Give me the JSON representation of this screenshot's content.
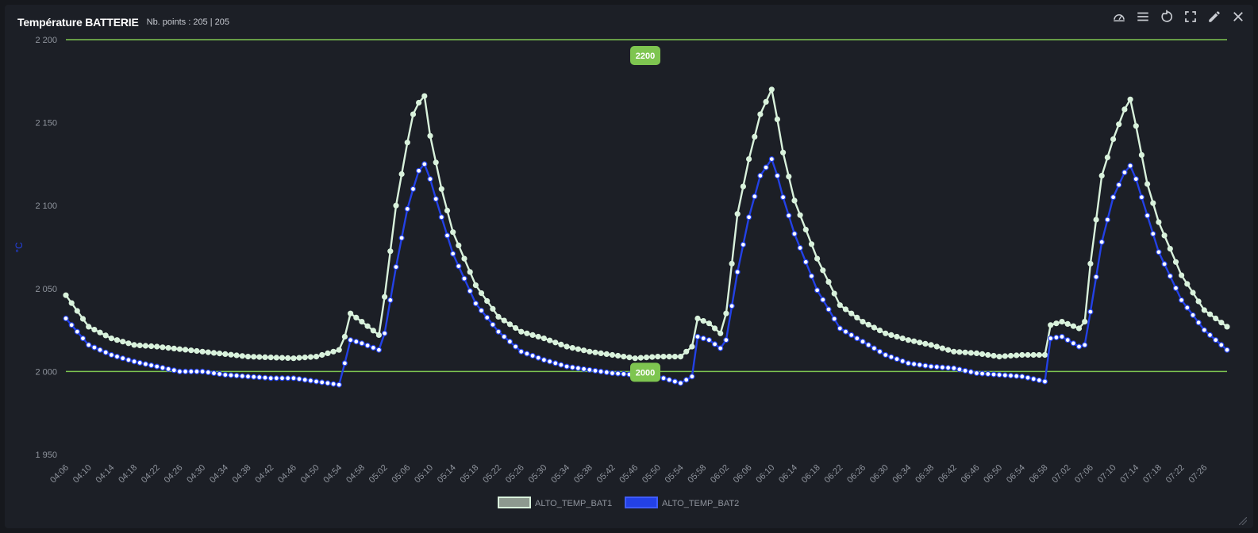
{
  "panel": {
    "title": "Température BATTERIE",
    "points_label": "Nb. points : 205 | 205"
  },
  "toolbar": [
    "gauge-icon",
    "menu-icon",
    "refresh-icon",
    "fullscreen-icon",
    "edit-icon",
    "close-icon"
  ],
  "colors": {
    "background": "#1c1f26",
    "threshold": "#7ec550",
    "bat1": "#d9f2dc",
    "bat2": "#2341e6",
    "text": "#8f949d",
    "ylabel": "#2341e6"
  },
  "chart_data": {
    "type": "line",
    "ylabel": "°C",
    "ylim": [
      1950,
      2200
    ],
    "yticks": [
      "2 200",
      "2 150",
      "2 100",
      "2 050",
      "2 000",
      "1 950"
    ],
    "ytick_values": [
      2200,
      2150,
      2100,
      2050,
      2000,
      1950
    ],
    "x_start": "04:06",
    "x_end": "07:30",
    "xticks": [
      "04:06",
      "04:10",
      "04:14",
      "04:18",
      "04:22",
      "04:26",
      "04:30",
      "04:34",
      "04:38",
      "04:42",
      "04:46",
      "04:50",
      "04:54",
      "04:58",
      "05:02",
      "05:06",
      "05:10",
      "05:14",
      "05:18",
      "05:22",
      "05:26",
      "05:30",
      "05:34",
      "05:38",
      "05:42",
      "05:46",
      "05:50",
      "05:54",
      "05:58",
      "06:02",
      "06:06",
      "06:10",
      "06:14",
      "06:18",
      "06:22",
      "06:26",
      "06:30",
      "06:34",
      "06:38",
      "06:42",
      "06:46",
      "06:50",
      "06:54",
      "06:58",
      "07:02",
      "07:06",
      "07:10",
      "07:14",
      "07:18",
      "07:22",
      "07:26"
    ],
    "thresholds": [
      {
        "value": 2200,
        "label": "2200"
      },
      {
        "value": 2000,
        "label": "2000"
      }
    ],
    "legend": [
      "ALTO_TEMP_BAT1",
      "ALTO_TEMP_BAT2"
    ],
    "series": [
      {
        "name": "ALTO_TEMP_BAT1",
        "control": [
          [
            "04:06",
            2046
          ],
          [
            "04:10",
            2027
          ],
          [
            "04:14",
            2020
          ],
          [
            "04:18",
            2016
          ],
          [
            "04:22",
            2015
          ],
          [
            "04:30",
            2012
          ],
          [
            "04:38",
            2009
          ],
          [
            "04:46",
            2008
          ],
          [
            "04:50",
            2009
          ],
          [
            "04:54",
            2013
          ],
          [
            "04:55",
            2021
          ],
          [
            "04:56",
            2035
          ],
          [
            "04:58",
            2030
          ],
          [
            "05:01",
            2022
          ],
          [
            "05:02",
            2045
          ],
          [
            "05:04",
            2100
          ],
          [
            "05:06",
            2138
          ],
          [
            "05:07",
            2155
          ],
          [
            "05:08",
            2162
          ],
          [
            "05:09",
            2166
          ],
          [
            "05:10",
            2142
          ],
          [
            "05:11",
            2126
          ],
          [
            "05:12",
            2110
          ],
          [
            "05:14",
            2084
          ],
          [
            "05:18",
            2052
          ],
          [
            "05:22",
            2033
          ],
          [
            "05:26",
            2024
          ],
          [
            "05:30",
            2020
          ],
          [
            "05:34",
            2015
          ],
          [
            "05:38",
            2012
          ],
          [
            "05:42",
            2010
          ],
          [
            "05:46",
            2008
          ],
          [
            "05:50",
            2009
          ],
          [
            "05:54",
            2009
          ],
          [
            "05:56",
            2015
          ],
          [
            "05:57",
            2032
          ],
          [
            "05:59",
            2029
          ],
          [
            "06:01",
            2023
          ],
          [
            "06:02",
            2035
          ],
          [
            "06:04",
            2095
          ],
          [
            "06:06",
            2128
          ],
          [
            "06:08",
            2155
          ],
          [
            "06:10",
            2170
          ],
          [
            "06:11",
            2152
          ],
          [
            "06:12",
            2132
          ],
          [
            "06:14",
            2103
          ],
          [
            "06:18",
            2068
          ],
          [
            "06:22",
            2040
          ],
          [
            "06:26",
            2030
          ],
          [
            "06:30",
            2023
          ],
          [
            "06:34",
            2019
          ],
          [
            "06:38",
            2016
          ],
          [
            "06:42",
            2012
          ],
          [
            "06:46",
            2011
          ],
          [
            "06:50",
            2009
          ],
          [
            "06:54",
            2010
          ],
          [
            "06:58",
            2010
          ],
          [
            "06:59",
            2028
          ],
          [
            "07:01",
            2030
          ],
          [
            "07:04",
            2026
          ],
          [
            "07:05",
            2030
          ],
          [
            "07:06",
            2065
          ],
          [
            "07:08",
            2118
          ],
          [
            "07:10",
            2140
          ],
          [
            "07:12",
            2158
          ],
          [
            "07:13",
            2164
          ],
          [
            "07:14",
            2148
          ],
          [
            "07:16",
            2113
          ],
          [
            "07:18",
            2090
          ],
          [
            "07:22",
            2058
          ],
          [
            "07:26",
            2037
          ],
          [
            "07:30",
            2027
          ]
        ]
      },
      {
        "name": "ALTO_TEMP_BAT2",
        "control": [
          [
            "04:06",
            2032
          ],
          [
            "04:10",
            2016
          ],
          [
            "04:14",
            2010
          ],
          [
            "04:18",
            2006
          ],
          [
            "04:22",
            2003
          ],
          [
            "04:26",
            2000
          ],
          [
            "04:30",
            2000
          ],
          [
            "04:34",
            1998
          ],
          [
            "04:38",
            1997
          ],
          [
            "04:42",
            1996
          ],
          [
            "04:46",
            1996
          ],
          [
            "04:50",
            1994
          ],
          [
            "04:54",
            1992
          ],
          [
            "04:55",
            2005
          ],
          [
            "04:56",
            2019
          ],
          [
            "04:58",
            2017
          ],
          [
            "05:01",
            2013
          ],
          [
            "05:02",
            2023
          ],
          [
            "05:04",
            2063
          ],
          [
            "05:06",
            2098
          ],
          [
            "05:07",
            2110
          ],
          [
            "05:08",
            2121
          ],
          [
            "05:09",
            2125
          ],
          [
            "05:10",
            2116
          ],
          [
            "05:11",
            2104
          ],
          [
            "05:14",
            2071
          ],
          [
            "05:18",
            2041
          ],
          [
            "05:22",
            2024
          ],
          [
            "05:26",
            2012
          ],
          [
            "05:30",
            2007
          ],
          [
            "05:34",
            2003
          ],
          [
            "05:38",
            2001
          ],
          [
            "05:42",
            1999
          ],
          [
            "05:46",
            1998
          ],
          [
            "05:50",
            1997
          ],
          [
            "05:54",
            1993
          ],
          [
            "05:56",
            1997
          ],
          [
            "05:57",
            2021
          ],
          [
            "05:59",
            2019
          ],
          [
            "06:01",
            2014
          ],
          [
            "06:02",
            2019
          ],
          [
            "06:04",
            2060
          ],
          [
            "06:06",
            2093
          ],
          [
            "06:08",
            2118
          ],
          [
            "06:10",
            2128
          ],
          [
            "06:11",
            2118
          ],
          [
            "06:12",
            2105
          ],
          [
            "06:14",
            2083
          ],
          [
            "06:18",
            2049
          ],
          [
            "06:22",
            2026
          ],
          [
            "06:26",
            2018
          ],
          [
            "06:30",
            2010
          ],
          [
            "06:34",
            2005
          ],
          [
            "06:38",
            2003
          ],
          [
            "06:42",
            2002
          ],
          [
            "06:46",
            1999
          ],
          [
            "06:50",
            1998
          ],
          [
            "06:54",
            1997
          ],
          [
            "06:58",
            1994
          ],
          [
            "06:59",
            2020
          ],
          [
            "07:01",
            2021
          ],
          [
            "07:04",
            2015
          ],
          [
            "07:05",
            2016
          ],
          [
            "07:06",
            2036
          ],
          [
            "07:08",
            2078
          ],
          [
            "07:10",
            2105
          ],
          [
            "07:12",
            2120
          ],
          [
            "07:13",
            2124
          ],
          [
            "07:14",
            2116
          ],
          [
            "07:16",
            2094
          ],
          [
            "07:18",
            2072
          ],
          [
            "07:22",
            2043
          ],
          [
            "07:26",
            2025
          ],
          [
            "07:30",
            2013
          ]
        ]
      }
    ],
    "points_per_series": 205,
    "grid": false,
    "legend_position": "bottom"
  }
}
